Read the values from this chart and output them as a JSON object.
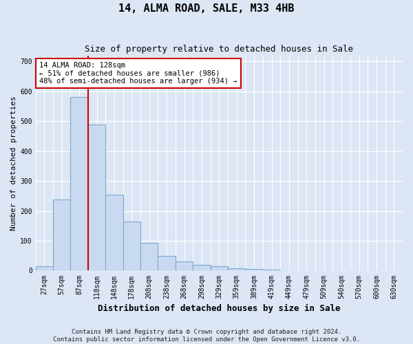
{
  "title": "14, ALMA ROAD, SALE, M33 4HB",
  "subtitle": "Size of property relative to detached houses in Sale",
  "xlabel": "Distribution of detached houses by size in Sale",
  "ylabel": "Number of detached properties",
  "footnote": "Contains HM Land Registry data © Crown copyright and database right 2024.\nContains public sector information licensed under the Open Government Licence v3.0.",
  "categories": [
    "27sqm",
    "57sqm",
    "87sqm",
    "118sqm",
    "148sqm",
    "178sqm",
    "208sqm",
    "238sqm",
    "268sqm",
    "298sqm",
    "329sqm",
    "359sqm",
    "389sqm",
    "419sqm",
    "449sqm",
    "479sqm",
    "509sqm",
    "540sqm",
    "570sqm",
    "600sqm",
    "630sqm"
  ],
  "values": [
    15,
    238,
    580,
    490,
    255,
    165,
    93,
    50,
    30,
    20,
    15,
    8,
    5,
    3,
    2,
    1,
    0,
    0,
    0,
    0,
    0
  ],
  "bar_color": "#c9d9f0",
  "bar_edge_color": "#7aaad0",
  "vline_x": 2.5,
  "vline_color": "#cc0000",
  "annotation_text": "14 ALMA ROAD: 128sqm\n← 51% of detached houses are smaller (986)\n48% of semi-detached houses are larger (934) →",
  "annotation_box_facecolor": "#ffffff",
  "annotation_box_edgecolor": "#cc0000",
  "ylim": [
    0,
    720
  ],
  "yticks": [
    0,
    100,
    200,
    300,
    400,
    500,
    600,
    700
  ],
  "bg_color": "#dce6f5",
  "plot_bg_color": "#dce6f5",
  "grid_color": "#ffffff",
  "title_fontsize": 11,
  "subtitle_fontsize": 9,
  "xlabel_fontsize": 9,
  "ylabel_fontsize": 8,
  "tick_fontsize": 7,
  "footnote_fontsize": 6.5
}
